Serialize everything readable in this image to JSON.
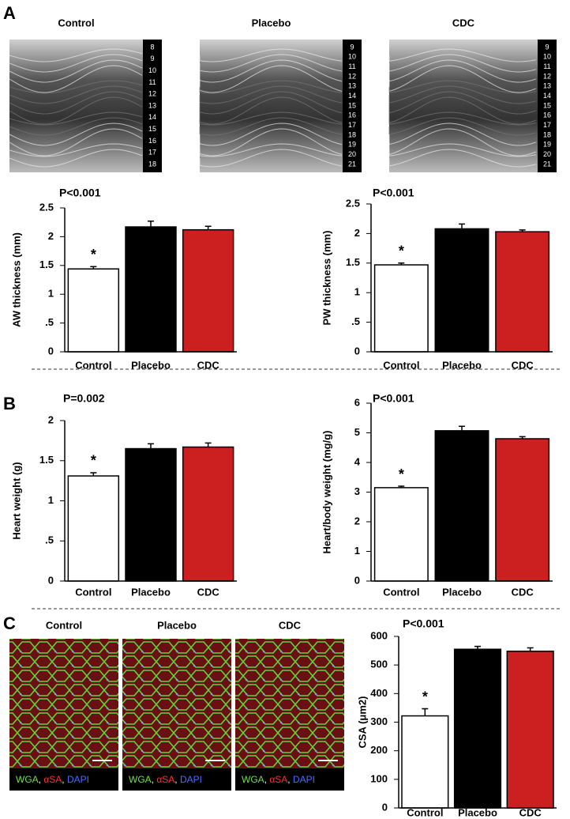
{
  "panels": {
    "a": "A",
    "b": "B",
    "c": "C"
  },
  "echo_images": [
    {
      "title": "Control",
      "scale": [
        "8",
        "9",
        "10",
        "11",
        "12",
        "13",
        "14",
        "15",
        "16",
        "17",
        "18"
      ]
    },
    {
      "title": "Placebo",
      "scale": [
        "9",
        "10",
        "11",
        "12",
        "13",
        "14",
        "15",
        "16",
        "17",
        "18",
        "19",
        "20",
        "21"
      ]
    },
    {
      "title": "CDC",
      "scale": [
        "9",
        "10",
        "11",
        "12",
        "13",
        "14",
        "15",
        "16",
        "17",
        "18",
        "19",
        "20",
        "21"
      ]
    }
  ],
  "histology_images": [
    {
      "title": "Control",
      "stain_labels": [
        "WGA",
        ", ",
        "αSA",
        ", ",
        "DAPI"
      ]
    },
    {
      "title": "Placebo",
      "stain_labels": [
        "WGA",
        ", ",
        "αSA",
        ", ",
        "DAPI"
      ]
    },
    {
      "title": "CDC",
      "stain_labels": [
        "WGA",
        ", ",
        "αSA",
        ", ",
        "DAPI"
      ]
    }
  ],
  "chart_data": [
    {
      "type": "bar",
      "title": "P<0.001",
      "ylabel": "AW thickness (mm)",
      "categories": [
        "Control",
        "Placebo",
        "CDC"
      ],
      "values": [
        1.44,
        2.17,
        2.12
      ],
      "errors": [
        0.04,
        0.1,
        0.06
      ],
      "colors": [
        "#ffffff",
        "#000000",
        "#cc1f1f"
      ],
      "annotation": "*",
      "ylim": [
        0,
        2.5
      ],
      "yticks": [
        0,
        {
          "value": 0.5,
          "label": ".5"
        },
        1,
        1.5,
        2,
        2.5
      ]
    },
    {
      "type": "bar",
      "title": "P<0.001",
      "ylabel": "PW thickness (mm)",
      "categories": [
        "Control",
        "Placebo",
        "CDC"
      ],
      "values": [
        1.47,
        2.08,
        2.03
      ],
      "errors": [
        0.03,
        0.08,
        0.03
      ],
      "colors": [
        "#ffffff",
        "#000000",
        "#cc1f1f"
      ],
      "annotation": "*",
      "ylim": [
        0,
        2.5
      ],
      "yticks": [
        0,
        {
          "value": 0.5,
          "label": ".5"
        },
        1,
        1.5,
        2,
        2.5
      ]
    },
    {
      "type": "bar",
      "title": "P=0.002",
      "ylabel": "Heart weight (g)",
      "categories": [
        "Control",
        "Placebo",
        "CDC"
      ],
      "values": [
        1.31,
        1.65,
        1.67
      ],
      "errors": [
        0.04,
        0.06,
        0.05
      ],
      "colors": [
        "#ffffff",
        "#000000",
        "#cc1f1f"
      ],
      "annotation": "*",
      "ylim": [
        0,
        2
      ],
      "yticks": [
        0,
        {
          "value": 0.5,
          "label": ".5"
        },
        1,
        1.5,
        2
      ]
    },
    {
      "type": "bar",
      "title": "P<0.001",
      "ylabel": "Heart/body weight (mg/g)",
      "categories": [
        "Control",
        "Placebo",
        "CDC"
      ],
      "values": [
        3.15,
        5.07,
        4.8
      ],
      "errors": [
        0.05,
        0.15,
        0.07
      ],
      "colors": [
        "#ffffff",
        "#000000",
        "#cc1f1f"
      ],
      "annotation": "*",
      "ylim": [
        0,
        6
      ],
      "yticks": [
        0,
        1,
        2,
        3,
        4,
        5,
        6
      ]
    },
    {
      "type": "bar",
      "title": "P<0.001",
      "ylabel": "CSA (μm2)",
      "categories": [
        "Control",
        "Placebo",
        "CDC"
      ],
      "values": [
        322,
        555,
        548
      ],
      "errors": [
        25,
        10,
        12
      ],
      "colors": [
        "#ffffff",
        "#000000",
        "#cc1f1f"
      ],
      "annotation": "*",
      "ylim": [
        0,
        600
      ],
      "yticks": [
        0,
        100,
        200,
        300,
        400,
        500,
        600
      ]
    }
  ]
}
